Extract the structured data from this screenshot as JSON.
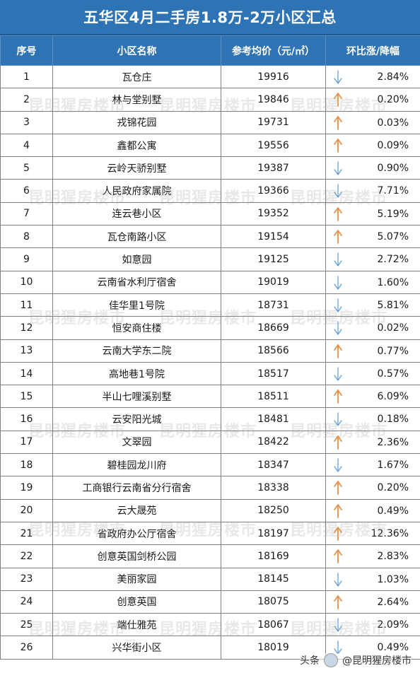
{
  "title": "五华区4月二手房1.8万-2万小区汇总",
  "headers": [
    "序号",
    "小区名称",
    "参考均价（元/㎡）",
    "环比涨/降幅"
  ],
  "colors": {
    "header_bg": "#2e74b5",
    "up_arrow": "#e8914a",
    "down_arrow": "#5b9bd5"
  },
  "rows": [
    {
      "no": "1",
      "name": "瓦仓庄",
      "price": "19916",
      "dir": "down",
      "pct": "2.84%"
    },
    {
      "no": "2",
      "name": "林与堂别墅",
      "price": "19846",
      "dir": "up",
      "pct": "0.20%"
    },
    {
      "no": "3",
      "name": "戎锦花园",
      "price": "19731",
      "dir": "up",
      "pct": "0.03%"
    },
    {
      "no": "4",
      "name": "鑫都公寓",
      "price": "19556",
      "dir": "up",
      "pct": "0.09%"
    },
    {
      "no": "5",
      "name": "云岭天骄别墅",
      "price": "19387",
      "dir": "down",
      "pct": "0.90%"
    },
    {
      "no": "6",
      "name": "人民政府家属院",
      "price": "19366",
      "dir": "down",
      "pct": "7.71%"
    },
    {
      "no": "7",
      "name": "连云巷小区",
      "price": "19352",
      "dir": "up",
      "pct": "5.19%"
    },
    {
      "no": "8",
      "name": "瓦仓南路小区",
      "price": "19154",
      "dir": "up",
      "pct": "5.07%"
    },
    {
      "no": "9",
      "name": "如意园",
      "price": "19125",
      "dir": "down",
      "pct": "2.72%"
    },
    {
      "no": "10",
      "name": "云南省水利厅宿舍",
      "price": "19019",
      "dir": "down",
      "pct": "1.60%"
    },
    {
      "no": "11",
      "name": "佳华里1号院",
      "price": "18731",
      "dir": "down",
      "pct": "5.81%"
    },
    {
      "no": "12",
      "name": "恒安商住楼",
      "price": "18669",
      "dir": "down",
      "pct": "0.02%"
    },
    {
      "no": "13",
      "name": "云南大学东二院",
      "price": "18566",
      "dir": "up",
      "pct": "0.77%"
    },
    {
      "no": "14",
      "name": "高地巷1号院",
      "price": "18517",
      "dir": "down",
      "pct": "0.57%"
    },
    {
      "no": "15",
      "name": "半山七哩溪别墅",
      "price": "18511",
      "dir": "up",
      "pct": "6.09%"
    },
    {
      "no": "16",
      "name": "云安阳光城",
      "price": "18481",
      "dir": "down",
      "pct": "0.18%"
    },
    {
      "no": "17",
      "name": "文翠园",
      "price": "18422",
      "dir": "up",
      "pct": "2.36%"
    },
    {
      "no": "18",
      "name": "碧桂园龙川府",
      "price": "18347",
      "dir": "down",
      "pct": "1.67%"
    },
    {
      "no": "19",
      "name": "工商银行云南省分行宿舍",
      "price": "18338",
      "dir": "up",
      "pct": "0.20%"
    },
    {
      "no": "20",
      "name": "云大晟苑",
      "price": "18250",
      "dir": "up",
      "pct": "0.49%"
    },
    {
      "no": "21",
      "name": "省政府办公厅宿舍",
      "price": "18197",
      "dir": "up",
      "pct": "12.36%"
    },
    {
      "no": "22",
      "name": "创意英国剑桥公园",
      "price": "18169",
      "dir": "up",
      "pct": "2.83%"
    },
    {
      "no": "23",
      "name": "美丽家园",
      "price": "18145",
      "dir": "down",
      "pct": "1.03%"
    },
    {
      "no": "24",
      "name": "创意英国",
      "price": "18075",
      "dir": "up",
      "pct": "2.64%"
    },
    {
      "no": "25",
      "name": "端仕雅苑",
      "price": "18067",
      "dir": "down",
      "pct": "2.09%"
    },
    {
      "no": "26",
      "name": "兴华街小区",
      "price": "18019",
      "dir": "down",
      "pct": "0.49%"
    }
  ],
  "watermark_text": "昆明猩房楼市",
  "footer": {
    "platform": "头条",
    "account": "@昆明猩房楼市"
  }
}
